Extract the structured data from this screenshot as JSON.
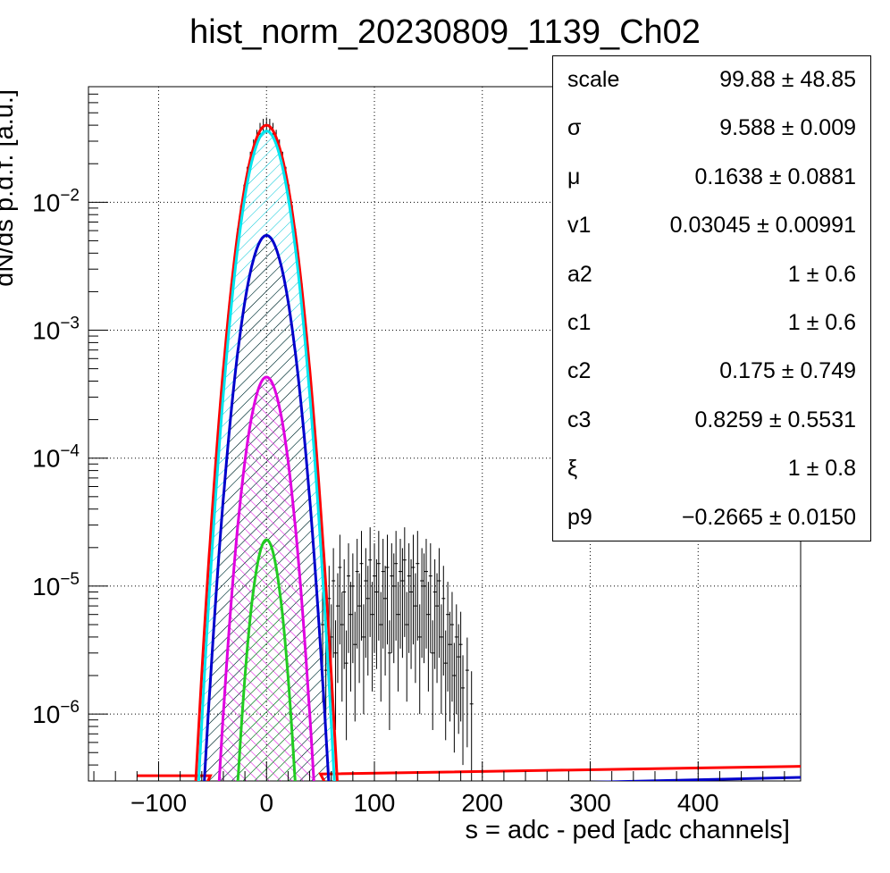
{
  "chart_data": {
    "type": "histogram_fit",
    "title": "hist_norm_20230809_1139_Ch02",
    "xlabel": "s = adc - ped [adc channels]",
    "ylabel": "dN/ds p.d.f. [a.u.]",
    "xlim": [
      -165,
      495
    ],
    "ylim": [
      3e-07,
      0.08
    ],
    "yscale": "log",
    "grid": true,
    "x_ticks": [
      -100,
      0,
      100,
      200,
      300,
      400
    ],
    "x_tick_labels": [
      "−100",
      "0",
      "100",
      "200",
      "300",
      "400"
    ],
    "y_ticks": [
      1e-06,
      1e-05,
      0.0001,
      0.001,
      0.01
    ],
    "y_tick_labels": [
      {
        "base": "10",
        "exp": "−6"
      },
      {
        "base": "10",
        "exp": "−5"
      },
      {
        "base": "10",
        "exp": "−4"
      },
      {
        "base": "10",
        "exp": "−3"
      },
      {
        "base": "10",
        "exp": "−2"
      }
    ],
    "series": [
      {
        "color": "#ff0000",
        "kind": "total_fit_line",
        "gaussian": {
          "amp": 0.04,
          "mu": 0,
          "sigma": 13.5
        },
        "baseline": [
          [
            -120,
            3.3e-07
          ],
          [
            50,
            3.4e-07
          ],
          [
            495,
            3.9e-07
          ]
        ]
      },
      {
        "color": "#00e5ee",
        "kind": "component",
        "hatch": true,
        "gaussian": {
          "amp": 0.036,
          "mu": 0,
          "sigma": 13.0
        }
      },
      {
        "color": "#0000cc",
        "kind": "component",
        "hatch": true,
        "gaussian": {
          "amp": 0.0055,
          "mu": 0,
          "sigma": 13.0
        },
        "tail": [
          [
            200,
            2.8e-07
          ],
          [
            495,
            3.2e-07
          ]
        ]
      },
      {
        "color": "#e000e0",
        "kind": "component",
        "hatch": true,
        "gaussian": {
          "amp": 0.00043,
          "mu": 0,
          "sigma": 11.5
        }
      },
      {
        "color": "#22cc22",
        "kind": "component",
        "hatch": true,
        "gaussian": {
          "amp": 2.3e-05,
          "mu": 0,
          "sigma": 9.0
        }
      }
    ],
    "data_points": [
      [
        52,
        5e-06
      ],
      [
        55,
        2.2e-06
      ],
      [
        58,
        8e-06
      ],
      [
        60,
        4e-06
      ],
      [
        62,
        1.1e-05
      ],
      [
        64,
        3e-06
      ],
      [
        66,
        7e-06
      ],
      [
        68,
        1.4e-05
      ],
      [
        70,
        5e-06
      ],
      [
        72,
        9e-06
      ],
      [
        74,
        2.5e-06
      ],
      [
        76,
        1.2e-05
      ],
      [
        78,
        6e-06
      ],
      [
        80,
        1e-05
      ],
      [
        82,
        3.5e-06
      ],
      [
        84,
        1.3e-05
      ],
      [
        86,
        7e-06
      ],
      [
        88,
        1.5e-05
      ],
      [
        90,
        4e-06
      ],
      [
        92,
        1.1e-05
      ],
      [
        94,
        8e-06
      ],
      [
        96,
        1.6e-05
      ],
      [
        98,
        6e-06
      ],
      [
        100,
        1.2e-05
      ],
      [
        102,
        9e-06
      ],
      [
        104,
        1.5e-05
      ],
      [
        106,
        5e-06
      ],
      [
        108,
        1.3e-05
      ],
      [
        110,
        8e-06
      ],
      [
        112,
        1.4e-05
      ],
      [
        114,
        3e-06
      ],
      [
        116,
        1.2e-05
      ],
      [
        118,
        1e-05
      ],
      [
        120,
        1.5e-05
      ],
      [
        122,
        6e-06
      ],
      [
        124,
        1.3e-05
      ],
      [
        126,
        1.1e-05
      ],
      [
        128,
        1.6e-05
      ],
      [
        130,
        5e-06
      ],
      [
        132,
        1.2e-05
      ],
      [
        134,
        9e-06
      ],
      [
        136,
        1.4e-05
      ],
      [
        138,
        7e-06
      ],
      [
        140,
        1.5e-05
      ],
      [
        142,
        4e-06
      ],
      [
        144,
        1.1e-05
      ],
      [
        146,
        1e-05
      ],
      [
        148,
        1.3e-05
      ],
      [
        150,
        6e-06
      ],
      [
        152,
        1.2e-05
      ],
      [
        154,
        3e-06
      ],
      [
        156,
        9e-06
      ],
      [
        158,
        7e-06
      ],
      [
        160,
        1.1e-05
      ],
      [
        162,
        4e-06
      ],
      [
        164,
        8e-06
      ],
      [
        166,
        2.5e-06
      ],
      [
        168,
        6e-06
      ],
      [
        170,
        3.5e-06
      ],
      [
        172,
        5e-06
      ],
      [
        174,
        2e-06
      ],
      [
        176,
        4e-06
      ],
      [
        178,
        2.8e-06
      ],
      [
        180,
        3.5e-06
      ],
      [
        182,
        1.6e-06
      ],
      [
        186,
        2.2e-06
      ],
      [
        190,
        1.2e-06
      ]
    ],
    "stats": [
      {
        "name": "scale",
        "value": "99.88 ± 48.85"
      },
      {
        "name": "σ",
        "value": "9.588 ± 0.009"
      },
      {
        "name": "μ",
        "value": "0.1638 ± 0.0881"
      },
      {
        "name": "v1",
        "value": "0.03045 ± 0.00991"
      },
      {
        "name": "a2",
        "value": "1 ± 0.6"
      },
      {
        "name": "c1",
        "value": "1 ± 0.6"
      },
      {
        "name": "c2",
        "value": "0.175 ± 0.749"
      },
      {
        "name": "c3",
        "value": "0.8259 ± 0.5531"
      },
      {
        "name": "ξ",
        "value": "1 ± 0.8"
      },
      {
        "name": "p9",
        "value": "−0.2665 ± 0.0150"
      }
    ]
  }
}
